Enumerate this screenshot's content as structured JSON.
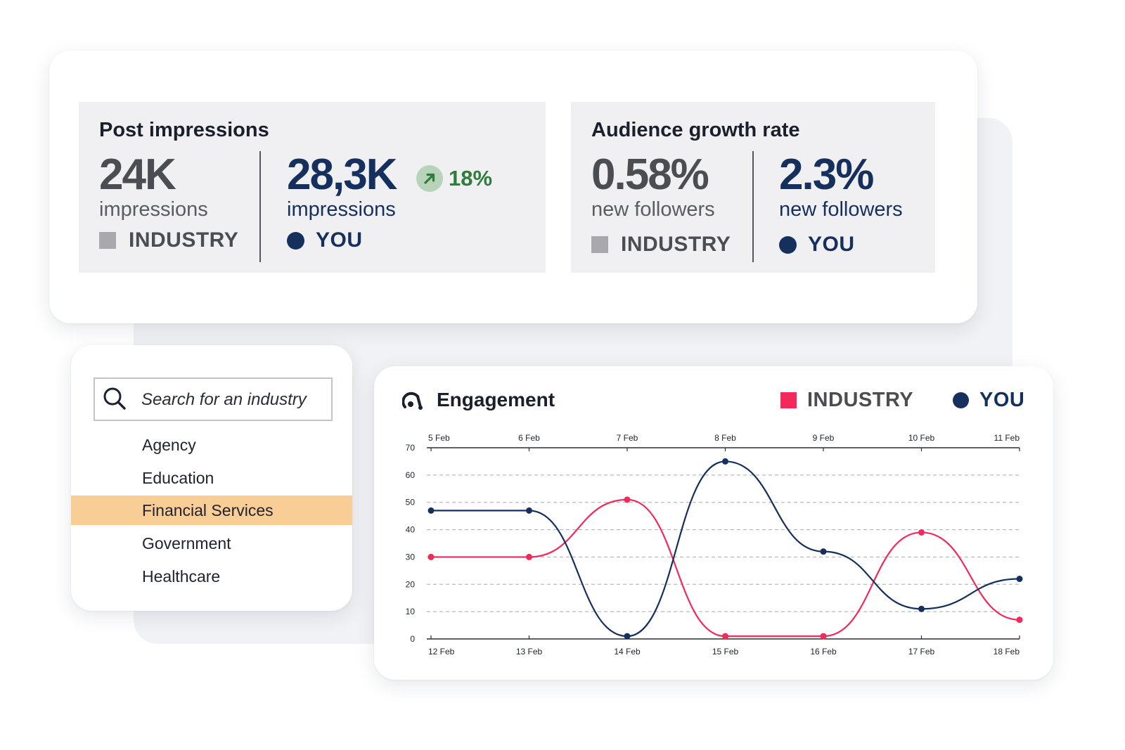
{
  "post_impressions": {
    "title": "Post impressions",
    "industry": {
      "value": "24K",
      "unit": "impressions",
      "label": "INDUSTRY"
    },
    "you": {
      "value": "28,3K",
      "unit": "impressions",
      "label": "YOU"
    },
    "trend": {
      "value": "18%",
      "icon": "arrow-up-right-icon",
      "color": "#2e7d3a"
    }
  },
  "audience_growth": {
    "title": "Audience growth rate",
    "industry": {
      "value": "0.58%",
      "unit": "new followers",
      "label": "INDUSTRY"
    },
    "you": {
      "value": "2.3%",
      "unit": "new followers",
      "label": "YOU"
    }
  },
  "industry_picker": {
    "search_placeholder": "Search for an industry",
    "options": [
      "Agency",
      "Education",
      "Financial Services",
      "Government",
      "Healthcare"
    ],
    "selected": "Financial Services",
    "highlight_color": "#f9cd96"
  },
  "engagement": {
    "title": "Engagement",
    "legend": {
      "industry": "INDUSTRY",
      "you": "YOU"
    }
  },
  "colors": {
    "industry_gray": "#a9a9ad",
    "you_navy": "#16305e",
    "industry_pink": "#f2295a"
  },
  "chart_data": {
    "type": "line",
    "title": "Engagement",
    "x_top": [
      "5 Feb",
      "6 Feb",
      "7 Feb",
      "8 Feb",
      "9 Feb",
      "10 Feb",
      "11 Feb"
    ],
    "x": [
      "12 Feb",
      "13 Feb",
      "14 Feb",
      "15 Feb",
      "16 Feb",
      "17 Feb",
      "18 Feb"
    ],
    "ylim": [
      0,
      70
    ],
    "yticks": [
      0,
      10,
      20,
      30,
      40,
      50,
      60,
      70
    ],
    "grid": true,
    "legend_position": "top-right",
    "series": [
      {
        "name": "INDUSTRY",
        "color": "#f2295a",
        "values": [
          30,
          30,
          51,
          1,
          1,
          39,
          7
        ]
      },
      {
        "name": "YOU",
        "color": "#16305e",
        "values": [
          47,
          47,
          1,
          65,
          32,
          11,
          22
        ]
      }
    ]
  }
}
